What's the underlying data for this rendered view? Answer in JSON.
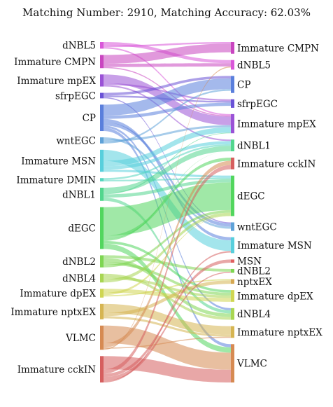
{
  "title": "Matching Number: 2910, Matching Accuracy: 62.03%",
  "chart_data": {
    "type": "sankey",
    "left_nodes": [
      {
        "name": "dNBL5",
        "value": 30,
        "color": "#d957d9"
      },
      {
        "name": "Immature CMPN",
        "value": 60,
        "color": "#c945c0"
      },
      {
        "name": "Immature mpEX",
        "value": 55,
        "color": "#9a52d6"
      },
      {
        "name": "sfrpEGC",
        "value": 25,
        "color": "#6a52d6"
      },
      {
        "name": "CP",
        "value": 120,
        "color": "#5a7fdc"
      },
      {
        "name": "wntEGC",
        "value": 28,
        "color": "#5fa2d8"
      },
      {
        "name": "Immature MSN",
        "value": 100,
        "color": "#58cfdc"
      },
      {
        "name": "Immature DMIN",
        "value": 15,
        "color": "#55d6be"
      },
      {
        "name": "dNBL1",
        "value": 60,
        "color": "#52d68e"
      },
      {
        "name": "dEGC",
        "value": 190,
        "color": "#52d65e"
      },
      {
        "name": "dNBL2",
        "value": 55,
        "color": "#7ed652"
      },
      {
        "name": "dNBL4",
        "value": 40,
        "color": "#a8d652"
      },
      {
        "name": "Immature dpEX",
        "value": 40,
        "color": "#cfd652"
      },
      {
        "name": "Immature nptxEX",
        "value": 70,
        "color": "#d6b552"
      },
      {
        "name": "VLMC",
        "value": 110,
        "color": "#d68a52"
      },
      {
        "name": "Immature cckIN",
        "value": 120,
        "color": "#d65f5f"
      }
    ],
    "right_nodes": [
      {
        "name": "Immature CMPN",
        "value": 55,
        "color": "#c945c0"
      },
      {
        "name": "dNBL5",
        "value": 45,
        "color": "#d957d9"
      },
      {
        "name": "CP",
        "value": 80,
        "color": "#5a7fdc"
      },
      {
        "name": "sfrpEGC",
        "value": 40,
        "color": "#6a52d6"
      },
      {
        "name": "Immature mpEX",
        "value": 90,
        "color": "#9a52d6"
      },
      {
        "name": "dNBL1",
        "value": 55,
        "color": "#52d68e"
      },
      {
        "name": "Immature cckIN",
        "value": 55,
        "color": "#d65f5f"
      },
      {
        "name": "dEGC",
        "value": 190,
        "color": "#52d65e"
      },
      {
        "name": "wntEGC",
        "value": 40,
        "color": "#5fa2d8"
      },
      {
        "name": "Immature MSN",
        "value": 75,
        "color": "#58cfdc"
      },
      {
        "name": "MSN",
        "value": 15,
        "color": "#e06060"
      },
      {
        "name": "dNBL2",
        "value": 18,
        "color": "#7ed652"
      },
      {
        "name": "nptxEX",
        "value": 22,
        "color": "#d6a852"
      },
      {
        "name": "Immature dpEX",
        "value": 55,
        "color": "#cfd652"
      },
      {
        "name": "dNBL4",
        "value": 55,
        "color": "#a8d652"
      },
      {
        "name": "Immature nptxEX",
        "value": 55,
        "color": "#d6b552"
      },
      {
        "name": "VLMC",
        "value": 180,
        "color": "#d68a52"
      }
    ],
    "links": [
      [
        "dNBL5",
        "dNBL5",
        15
      ],
      [
        "dNBL5",
        "Immature CMPN",
        8
      ],
      [
        "dNBL5",
        "Immature mpEX",
        7
      ],
      [
        "Immature CMPN",
        "Immature CMPN",
        40
      ],
      [
        "Immature CMPN",
        "dNBL5",
        15
      ],
      [
        "Immature CMPN",
        "Immature mpEX",
        5
      ],
      [
        "Immature mpEX",
        "Immature mpEX",
        40
      ],
      [
        "Immature mpEX",
        "sfrpEGC",
        8
      ],
      [
        "Immature mpEX",
        "dNBL1",
        7
      ],
      [
        "sfrpEGC",
        "CP",
        12
      ],
      [
        "sfrpEGC",
        "sfrpEGC",
        8
      ],
      [
        "sfrpEGC",
        "wntEGC",
        5
      ],
      [
        "CP",
        "CP",
        50
      ],
      [
        "CP",
        "sfrpEGC",
        15
      ],
      [
        "CP",
        "Immature MSN",
        15
      ],
      [
        "CP",
        "wntEGC",
        15
      ],
      [
        "CP",
        "dNBL4",
        10
      ],
      [
        "CP",
        "VLMC",
        15
      ],
      [
        "wntEGC",
        "wntEGC",
        10
      ],
      [
        "wntEGC",
        "Immature mpEX",
        10
      ],
      [
        "wntEGC",
        "CP",
        8
      ],
      [
        "Immature MSN",
        "Immature MSN",
        50
      ],
      [
        "Immature MSN",
        "Immature mpEX",
        25
      ],
      [
        "Immature MSN",
        "dNBL1",
        15
      ],
      [
        "Immature MSN",
        "dEGC",
        10
      ],
      [
        "Immature DMIN",
        "dNBL1",
        8
      ],
      [
        "Immature DMIN",
        "dEGC",
        7
      ],
      [
        "dNBL1",
        "dNBL1",
        25
      ],
      [
        "dNBL1",
        "Immature mpEX",
        5
      ],
      [
        "dNBL1",
        "dEGC",
        15
      ],
      [
        "dNBL1",
        "dNBL4",
        15
      ],
      [
        "dEGC",
        "dEGC",
        130
      ],
      [
        "dEGC",
        "Immature cckIN",
        15
      ],
      [
        "dEGC",
        "dNBL1",
        8
      ],
      [
        "dEGC",
        "Immature dpEX",
        12
      ],
      [
        "dEGC",
        "VLMC",
        25
      ],
      [
        "dNBL2",
        "dNBL2",
        13
      ],
      [
        "dNBL2",
        "dNBL4",
        17
      ],
      [
        "dNBL2",
        "Immature dpEX",
        13
      ],
      [
        "dNBL2",
        "dEGC",
        12
      ],
      [
        "dNBL4",
        "dNBL4",
        13
      ],
      [
        "dNBL4",
        "Immature dpEX",
        12
      ],
      [
        "dNBL4",
        "dEGC",
        15
      ],
      [
        "Immature dpEX",
        "Immature dpEX",
        18
      ],
      [
        "Immature dpEX",
        "dEGC",
        11
      ],
      [
        "Immature dpEX",
        "Immature mpEX",
        5
      ],
      [
        "Immature dpEX",
        "nptxEX",
        6
      ],
      [
        "Immature nptxEX",
        "Immature nptxEX",
        40
      ],
      [
        "Immature nptxEX",
        "nptxEX",
        16
      ],
      [
        "Immature nptxEX",
        "Immature mpEX",
        4
      ],
      [
        "Immature nptxEX",
        "Immature nptxEX",
        10
      ],
      [
        "VLMC",
        "VLMC",
        80
      ],
      [
        "VLMC",
        "Immature cckIN",
        20
      ],
      [
        "VLMC",
        "Immature nptxEX",
        5
      ],
      [
        "VLMC",
        "dNBL5",
        5
      ],
      [
        "Immature cckIN",
        "VLMC",
        60
      ],
      [
        "Immature cckIN",
        "Immature cckIN",
        20
      ],
      [
        "Immature cckIN",
        "MSN",
        15
      ],
      [
        "Immature cckIN",
        "dNBL2",
        18
      ],
      [
        "Immature cckIN",
        "Immature MSN",
        7
      ]
    ]
  }
}
